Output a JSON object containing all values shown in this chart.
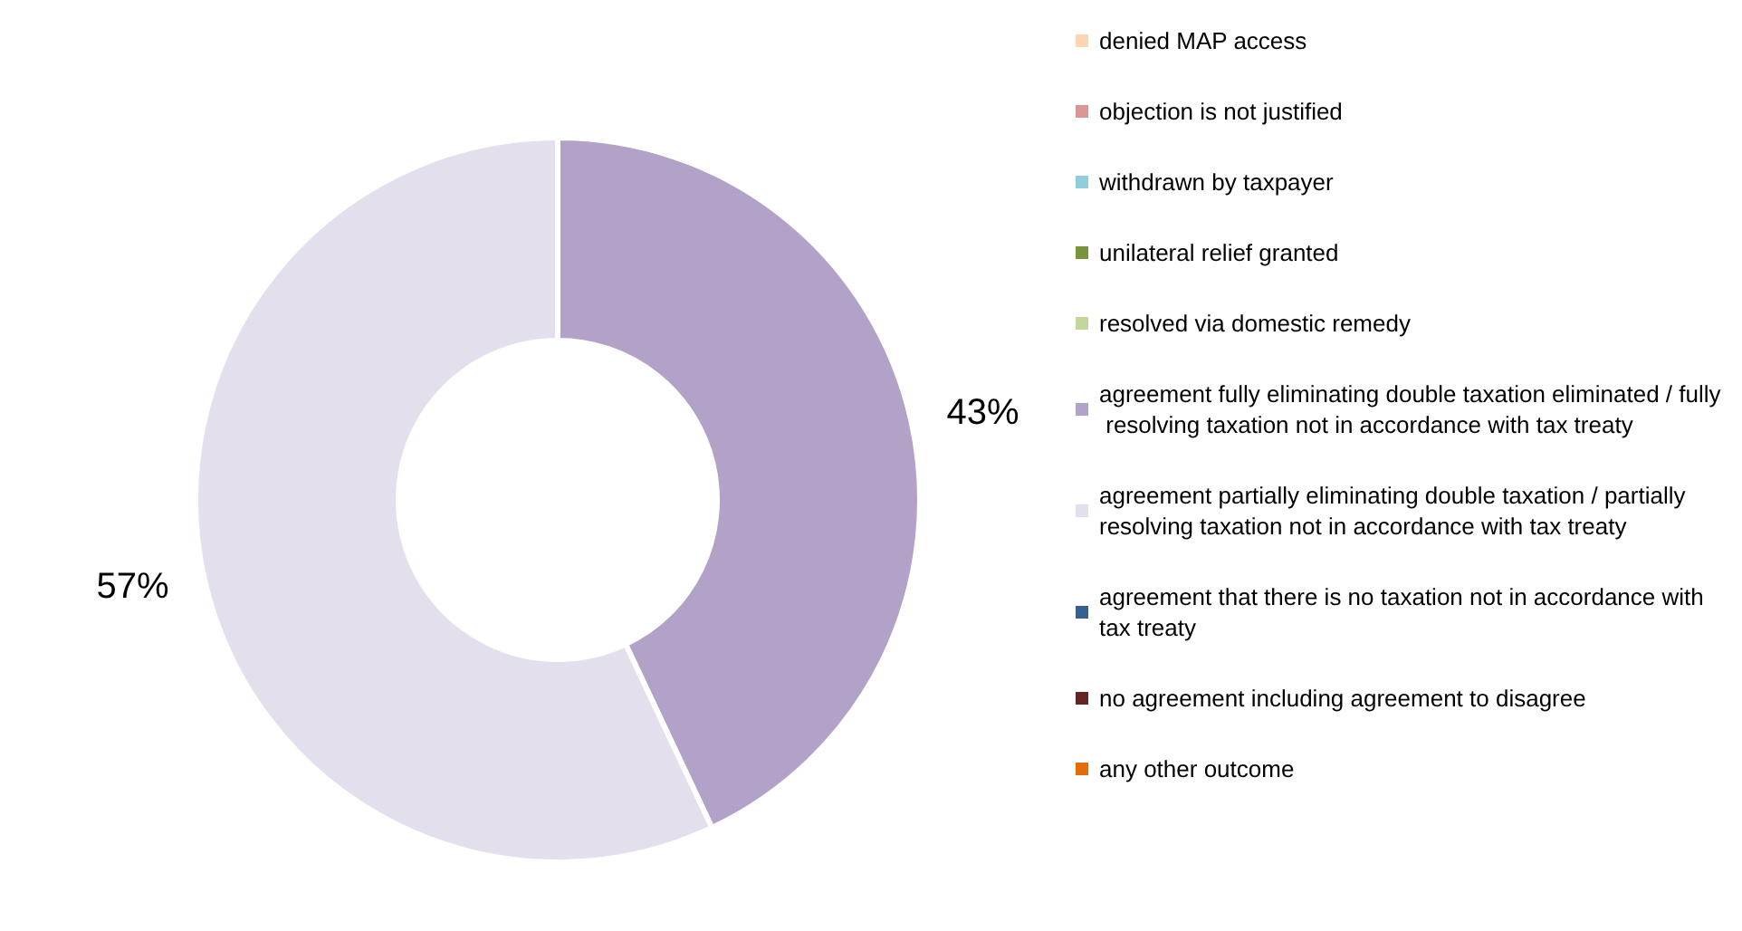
{
  "chart_data": {
    "type": "donut",
    "categories": [
      "denied MAP access",
      "objection is not justified",
      "withdrawn by taxpayer",
      "unilateral relief granted",
      "resolved via domestic remedy",
      "agreement fully eliminating double taxation eliminated / fully resolving taxation not in accordance with tax treaty",
      "agreement partially eliminating double taxation / partially resolving taxation not in accordance with tax treaty",
      "agreement that there is no taxation not in accordance with tax treaty",
      "no agreement including agreement to disagree",
      "any other outcome"
    ],
    "values": [
      0,
      0,
      0,
      0,
      0,
      43,
      57,
      0,
      0,
      0
    ],
    "value_labels": [
      null,
      null,
      null,
      null,
      null,
      "43%",
      "57%",
      null,
      null,
      null
    ],
    "colors": [
      "#fcd5b4",
      "#da9694",
      "#92cddc",
      "#77933c",
      "#c3d69b",
      "#b3a2c7",
      "#e4dfec",
      "#376092",
      "#632523",
      "#e46c0a"
    ],
    "legend": "right"
  }
}
